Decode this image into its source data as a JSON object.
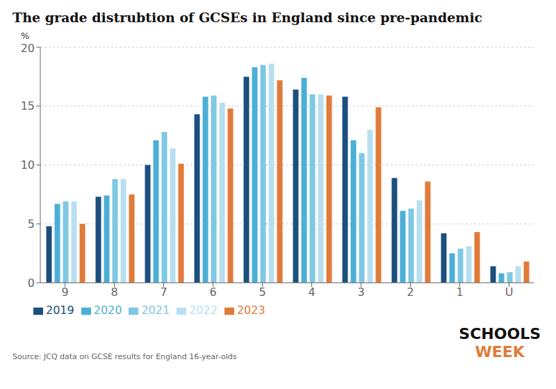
{
  "chart_data": {
    "type": "bar",
    "title": "The grade distrubtion of GCSEs in England since pre-pandemic",
    "ylabel": "%",
    "categories": [
      "9",
      "8",
      "7",
      "6",
      "5",
      "4",
      "3",
      "2",
      "1",
      "U"
    ],
    "series": [
      {
        "name": "2019",
        "color": "#1b4f7e",
        "values": [
          4.8,
          7.3,
          10.0,
          14.3,
          17.5,
          16.4,
          15.8,
          8.9,
          4.2,
          1.4
        ]
      },
      {
        "name": "2020",
        "color": "#4bafd6",
        "values": [
          6.7,
          7.4,
          12.1,
          15.8,
          18.3,
          17.4,
          12.1,
          6.1,
          2.5,
          0.8
        ]
      },
      {
        "name": "2021",
        "color": "#7ec8e3",
        "values": [
          6.9,
          8.8,
          12.8,
          15.9,
          18.5,
          16.0,
          11.0,
          6.3,
          2.9,
          0.9
        ]
      },
      {
        "name": "2022",
        "color": "#b8dff0",
        "values": [
          6.9,
          8.8,
          11.4,
          15.3,
          18.6,
          16.0,
          13.0,
          7.0,
          3.1,
          1.4
        ]
      },
      {
        "name": "2023",
        "color": "#e07b39",
        "values": [
          5.0,
          7.5,
          10.1,
          14.8,
          17.2,
          15.9,
          14.9,
          8.6,
          4.3,
          1.8
        ]
      }
    ],
    "ylim": [
      0,
      20
    ],
    "yticks": [
      0,
      5,
      10,
      15,
      20
    ],
    "grid": true,
    "legend": "bottom",
    "annotations": [
      {
        "text": "Source: JCQ data on GCSE results for England 16-year-olds"
      },
      {
        "text": "SCHOOLS",
        "color": "#111111"
      },
      {
        "text": "WEEK",
        "color": "#e07b39"
      }
    ]
  }
}
